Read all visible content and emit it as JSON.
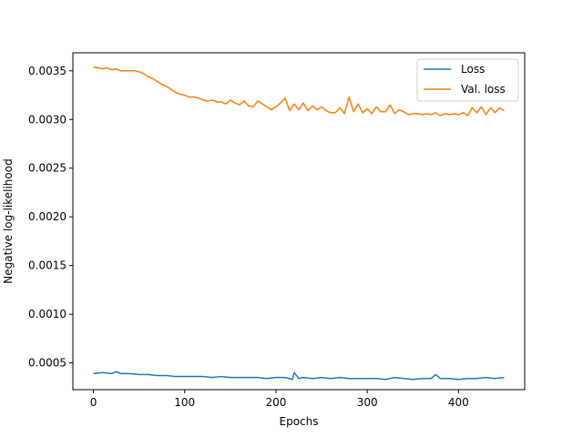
{
  "chart_data": {
    "type": "line",
    "title": "",
    "xlabel": "Epochs",
    "ylabel": "Negative log-likelihood",
    "xlim": [
      -22.5,
      472.5
    ],
    "ylim": [
      0.000225,
      0.003685
    ],
    "xticks": [
      0,
      100,
      200,
      300,
      400
    ],
    "xtick_labels": [
      "0",
      "100",
      "200",
      "300",
      "400"
    ],
    "yticks": [
      0.0005,
      0.001,
      0.0015,
      0.002,
      0.0025,
      0.003,
      0.0035
    ],
    "ytick_labels": [
      "0.0005",
      "0.0010",
      "0.0015",
      "0.0020",
      "0.0025",
      "0.0030",
      "0.0035"
    ],
    "grid": false,
    "legend_position": "top-right",
    "series": [
      {
        "name": "Loss",
        "color": "#1f77b4",
        "x": [
          0,
          10,
          20,
          25,
          30,
          40,
          50,
          60,
          70,
          80,
          90,
          100,
          110,
          120,
          130,
          140,
          150,
          160,
          170,
          180,
          190,
          200,
          210,
          218,
          220,
          225,
          230,
          240,
          250,
          260,
          270,
          280,
          290,
          300,
          310,
          320,
          330,
          340,
          350,
          360,
          370,
          375,
          380,
          390,
          400,
          410,
          420,
          430,
          440,
          450
        ],
        "y": [
          0.00039,
          0.0004,
          0.00039,
          0.00041,
          0.00039,
          0.00039,
          0.00038,
          0.00038,
          0.00037,
          0.00037,
          0.00036,
          0.00036,
          0.00036,
          0.00036,
          0.00035,
          0.00036,
          0.00035,
          0.00035,
          0.00035,
          0.00035,
          0.00034,
          0.00035,
          0.00035,
          0.00033,
          0.0004,
          0.00034,
          0.00035,
          0.00034,
          0.00035,
          0.00034,
          0.00035,
          0.00034,
          0.00034,
          0.00034,
          0.00034,
          0.00033,
          0.00035,
          0.00034,
          0.00033,
          0.00034,
          0.00034,
          0.00038,
          0.00034,
          0.00034,
          0.00033,
          0.00034,
          0.00034,
          0.00035,
          0.00034,
          0.00035
        ]
      },
      {
        "name": "Val. loss",
        "color": "#ff7f0e",
        "x": [
          0,
          5,
          10,
          15,
          20,
          25,
          30,
          40,
          45,
          50,
          55,
          60,
          65,
          70,
          75,
          80,
          85,
          90,
          95,
          100,
          105,
          110,
          115,
          120,
          125,
          130,
          135,
          140,
          145,
          150,
          155,
          160,
          165,
          170,
          175,
          180,
          185,
          190,
          195,
          200,
          205,
          210,
          215,
          220,
          225,
          230,
          235,
          240,
          245,
          250,
          255,
          260,
          265,
          270,
          275,
          280,
          285,
          290,
          295,
          300,
          305,
          310,
          315,
          320,
          325,
          330,
          335,
          340,
          345,
          350,
          355,
          360,
          365,
          370,
          375,
          380,
          385,
          390,
          395,
          400,
          405,
          410,
          415,
          420,
          425,
          430,
          435,
          440,
          445,
          450
        ],
        "y": [
          0.00354,
          0.00353,
          0.00352,
          0.00353,
          0.00351,
          0.00352,
          0.0035,
          0.0035,
          0.0035,
          0.00349,
          0.00347,
          0.00344,
          0.00342,
          0.00339,
          0.00336,
          0.00334,
          0.00331,
          0.00328,
          0.00326,
          0.00325,
          0.00323,
          0.00323,
          0.00322,
          0.0032,
          0.00319,
          0.0032,
          0.00318,
          0.00318,
          0.00316,
          0.0032,
          0.00317,
          0.00315,
          0.00319,
          0.00314,
          0.00313,
          0.00319,
          0.00316,
          0.00313,
          0.0031,
          0.00313,
          0.00317,
          0.00322,
          0.00309,
          0.00316,
          0.0031,
          0.00317,
          0.00309,
          0.00314,
          0.0031,
          0.00313,
          0.00309,
          0.00307,
          0.00307,
          0.00312,
          0.00306,
          0.00323,
          0.00308,
          0.00316,
          0.00307,
          0.00311,
          0.00306,
          0.00313,
          0.00308,
          0.00308,
          0.00315,
          0.00306,
          0.0031,
          0.00308,
          0.00305,
          0.00306,
          0.00306,
          0.00305,
          0.00306,
          0.00305,
          0.00307,
          0.00304,
          0.00306,
          0.00305,
          0.00306,
          0.00305,
          0.00307,
          0.00304,
          0.00312,
          0.00307,
          0.00313,
          0.00305,
          0.00312,
          0.00307,
          0.00312,
          0.00309
        ]
      }
    ]
  }
}
